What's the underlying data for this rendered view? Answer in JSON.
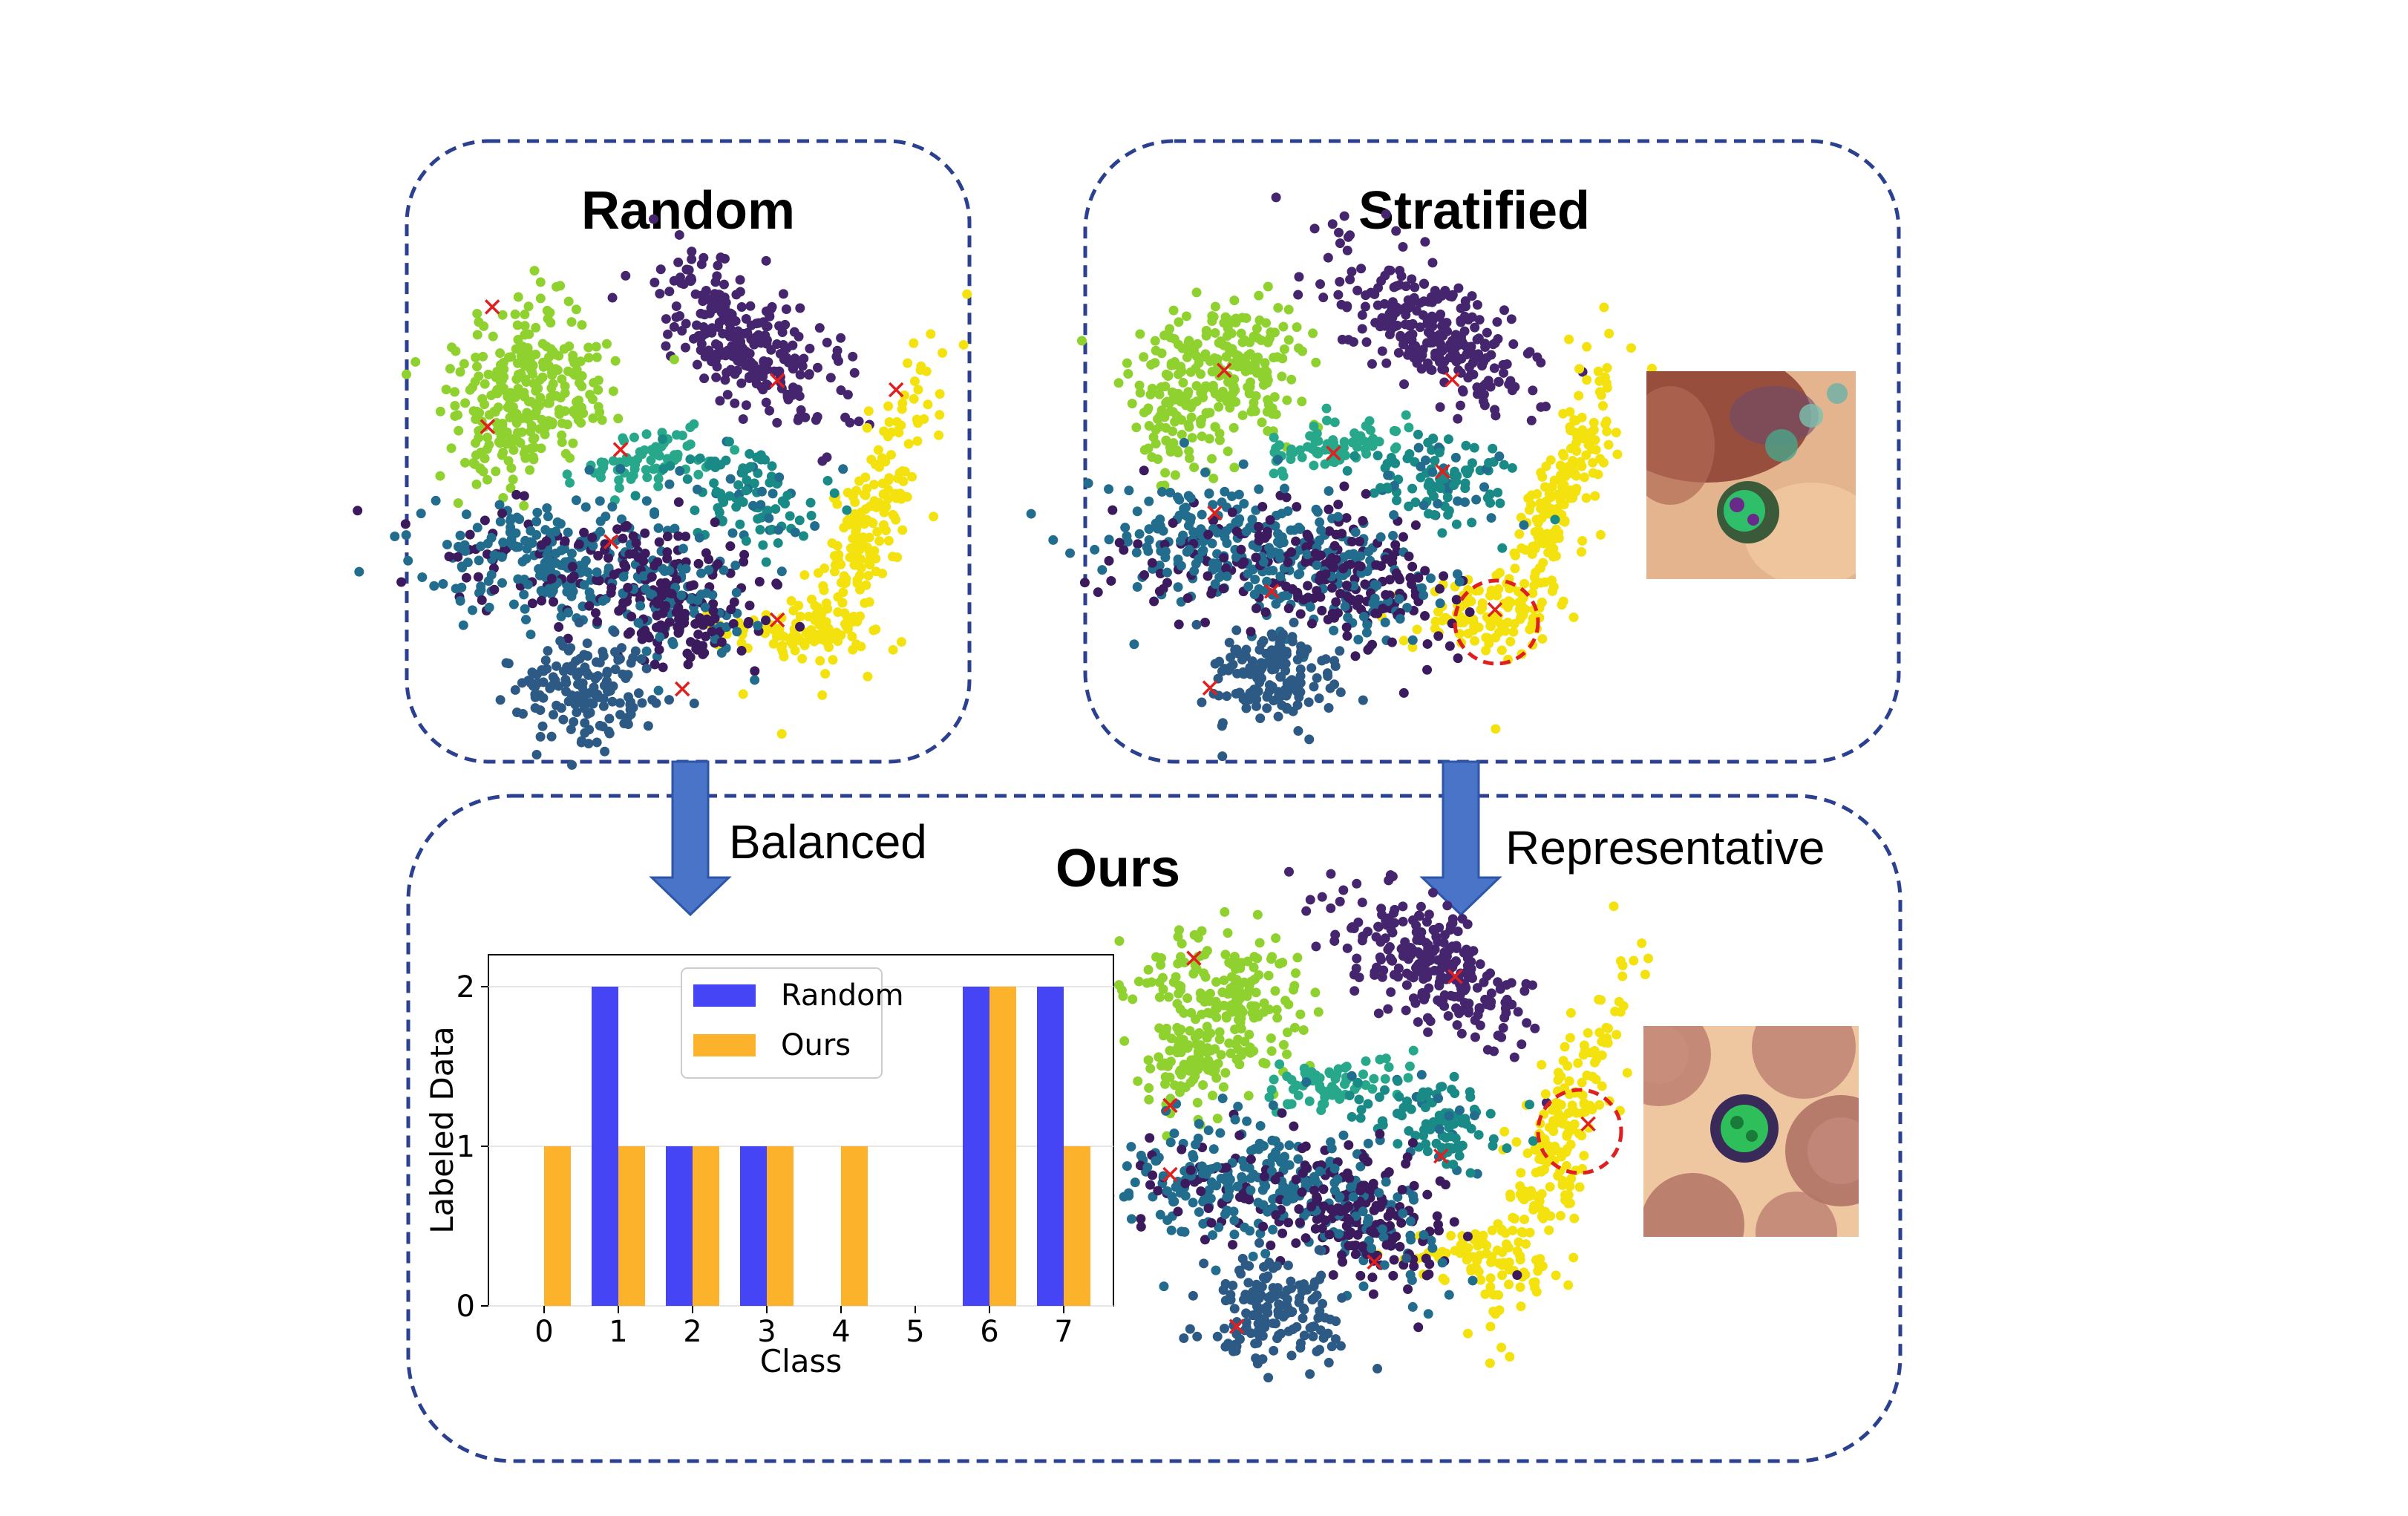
{
  "panels": {
    "random": {
      "title": "Random"
    },
    "stratified": {
      "title": "Stratified"
    },
    "ours": {
      "title": "Ours"
    }
  },
  "arrows": {
    "left": {
      "label": "Balanced"
    },
    "right": {
      "label": "Representative"
    }
  },
  "colors": {
    "panel_border": "#2b4090",
    "arrow": "#4a74c8",
    "marker": "#e0201e",
    "highlight_circle": "#e02020",
    "random_bar": "#4545f5",
    "ours_bar": "#fdb22c",
    "cluster_palette": [
      "#3b1a5e",
      "#45256e",
      "#2d5a85",
      "#226c8e",
      "#1a8a86",
      "#27a88a",
      "#8fd12e",
      "#f4e20e"
    ]
  },
  "chart_data": {
    "type": "bar",
    "categories": [
      "0",
      "1",
      "2",
      "3",
      "4",
      "5",
      "6",
      "7"
    ],
    "series": [
      {
        "name": "Random",
        "values": [
          0,
          2,
          1,
          1,
          0,
          0,
          2,
          2
        ]
      },
      {
        "name": "Ours",
        "values": [
          1,
          1,
          1,
          1,
          1,
          0,
          2,
          1
        ]
      }
    ],
    "xlabel": "Class",
    "ylabel": "Labeled Data",
    "ylim": [
      0,
      2.2
    ],
    "yticks": [
      "0",
      "1",
      "2"
    ],
    "grid": true,
    "legend_position": "top-center"
  },
  "thumbnails": {
    "stratified_cell": {
      "icon": "blood-cell-thumbnail"
    },
    "ours_cell": {
      "icon": "blood-cell-thumbnail"
    }
  }
}
